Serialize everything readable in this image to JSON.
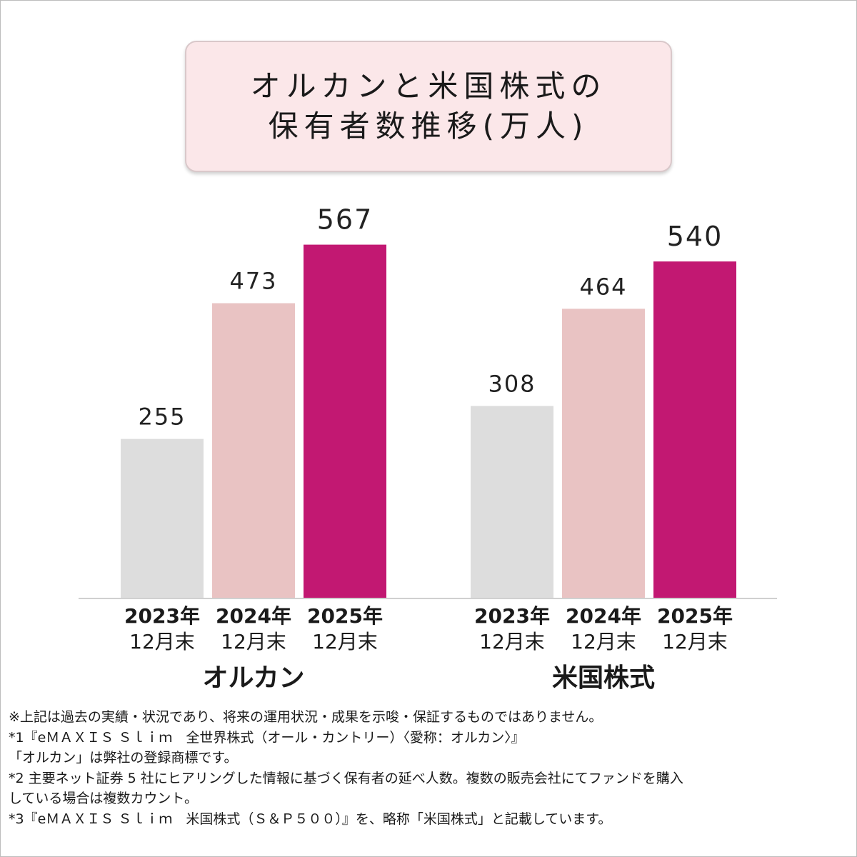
{
  "title": {
    "line1": "オルカンと米国株式の",
    "line2": "保有者数推移(万人)"
  },
  "colors": {
    "bar_2023": "#dddddd",
    "bar_2024": "#e9c3c3",
    "bar_2025": "#c21872",
    "title_bg": "#fbe7e9",
    "baseline": "#d0d0d0"
  },
  "chart_data": {
    "type": "bar",
    "title": "オルカンと米国株式の保有者数推移(万人)",
    "ylabel": "",
    "ylim": [
      0,
      600
    ],
    "grid": false,
    "legend": "none",
    "groups": [
      {
        "name": "オルカン",
        "bars": [
          {
            "label_line1": "2023年",
            "label_line2": "12月末",
            "value": 255,
            "value_label": "255"
          },
          {
            "label_line1": "2024年",
            "label_line2": "12月末",
            "value": 473,
            "value_label": "473"
          },
          {
            "label_line1": "2025年",
            "label_line2": "12月末",
            "value": 567,
            "value_label": "567"
          }
        ]
      },
      {
        "name": "米国株式",
        "bars": [
          {
            "label_line1": "2023年",
            "label_line2": "12月末",
            "value": 308,
            "value_label": "308"
          },
          {
            "label_line1": "2024年",
            "label_line2": "12月末",
            "value": 464,
            "value_label": "464"
          },
          {
            "label_line1": "2025年",
            "label_line2": "12月末",
            "value": 540,
            "value_label": "540"
          }
        ]
      }
    ]
  },
  "notes": [
    "※上記は過去の実績・状況であり、将来の運用状況・成果を示唆・保証するものではありません。",
    "*1『eＭＡＸＩＳ Ｓｌｉｍ　全世界株式（オール・カントリー）〈愛称：オルカン〉』",
    "「オルカン」は弊社の登録商標です。",
    "*2 主要ネット証券 5 社にヒアリングした情報に基づく保有者の延べ人数。複数の販売会社にてファンドを購入",
    "している場合は複数カウント。",
    "*3『eＭＡＸＩＳ Ｓｌｉｍ　米国株式（Ｓ＆Ｐ５００）』を、略称「米国株式」と記載しています。"
  ]
}
